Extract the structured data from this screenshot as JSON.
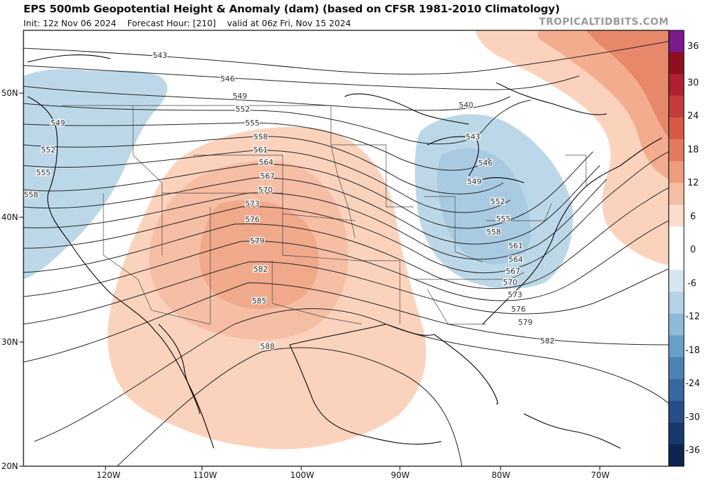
{
  "header": {
    "title": "EPS 500mb Geopotential Height & Anomaly (dam) (based on CFSR 1981-2010 Climatology)",
    "init": "Init: 12z Nov 06 2024",
    "forecast_hour": "Forecast Hour: [210]",
    "valid": "valid at 06z Fri, Nov 15 2024",
    "brand": "TROPICALTIDBITS.COM"
  },
  "map": {
    "lat_labels": [
      "50N",
      "40N",
      "30N",
      "20N"
    ],
    "lon_labels": [
      "120W",
      "110W",
      "100W",
      "90W",
      "80W",
      "70W"
    ],
    "contour_labels": [
      "543",
      "546",
      "549",
      "552",
      "555",
      "558",
      "561",
      "564",
      "567",
      "570",
      "573",
      "576",
      "579",
      "582",
      "585",
      "588",
      "540",
      "549",
      "552",
      "555",
      "558",
      "543",
      "546",
      "549",
      "552",
      "555",
      "558",
      "561",
      "564",
      "567",
      "570",
      "573",
      "576",
      "579",
      "582"
    ],
    "colors": {
      "background": "#ffffff",
      "positive_light": "#fbd3bd",
      "positive_mid": "#f3ad8e",
      "positive_strong": "#e47b5c",
      "negative_light": "#bcd8e8",
      "negative_mid": "#8fbcd9",
      "contour": "#222222",
      "coast": "#000000"
    }
  },
  "colorbar": {
    "labels": [
      "36",
      "30",
      "24",
      "18",
      "12",
      "6",
      "0",
      "-6",
      "-12",
      "-18",
      "-24",
      "-30",
      "-36"
    ],
    "colors": [
      "#7a1a8c",
      "#8e1020",
      "#ad2130",
      "#c43c3a",
      "#d65a48",
      "#e37a5e",
      "#ee9c7e",
      "#f6bea4",
      "#fbdccd",
      "#ffffff",
      "#ffffff",
      "#d6e6f1",
      "#b3d2e6",
      "#8dbad9",
      "#6a9fc8",
      "#4d83b5",
      "#37689e",
      "#254f86",
      "#163a6c",
      "#0c2550"
    ]
  }
}
